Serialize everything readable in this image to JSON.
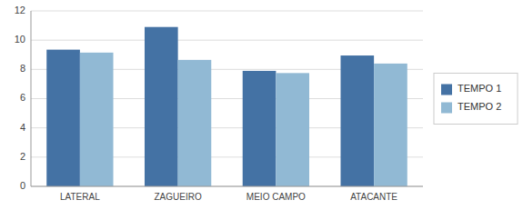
{
  "chart_data": {
    "type": "bar",
    "categories": [
      "LATERAL",
      "ZAGUEIRO",
      "MEIO CAMPO",
      "ATACANTE"
    ],
    "series": [
      {
        "name": "TEMPO 1",
        "color": "#4472A4",
        "values": [
          9.35,
          10.9,
          7.9,
          8.95
        ]
      },
      {
        "name": "TEMPO 2",
        "color": "#91B9D4",
        "values": [
          9.15,
          8.65,
          7.75,
          8.4
        ]
      }
    ],
    "ylim": [
      0,
      12
    ],
    "yticks": [
      0,
      2,
      4,
      6,
      8,
      10,
      12
    ],
    "grid": true,
    "legend": "right"
  }
}
